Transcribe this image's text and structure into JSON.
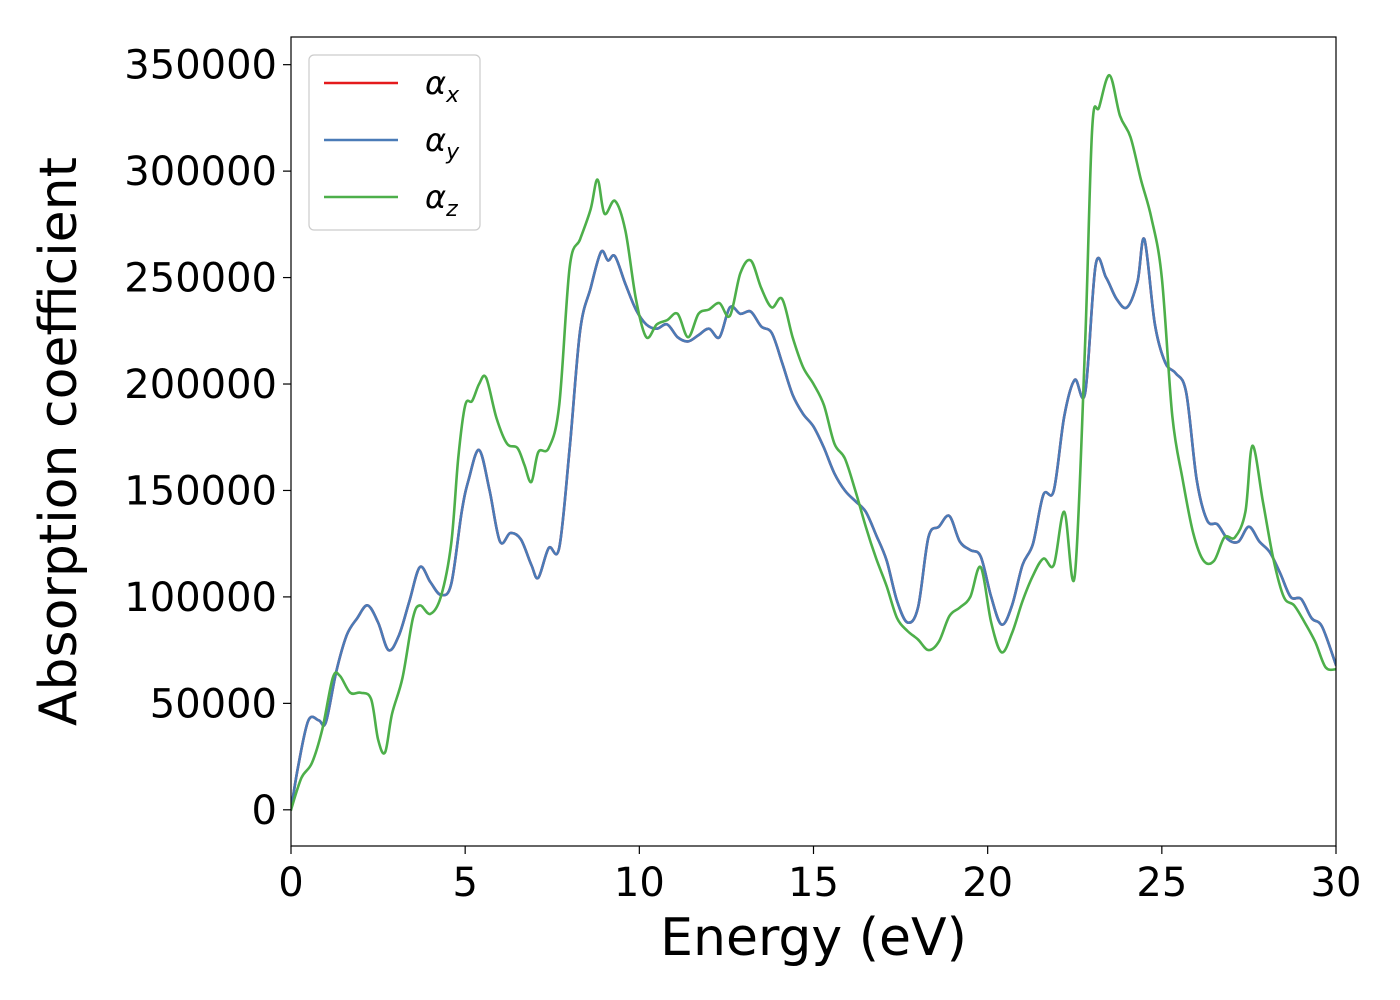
{
  "chart_data": {
    "type": "line",
    "title": "",
    "xlabel": "Energy (eV)",
    "ylabel": "Absorption coefficient",
    "xlim": [
      0,
      30
    ],
    "ylim": [
      -17000,
      363000
    ],
    "xticks": [
      0,
      5,
      10,
      15,
      20,
      25,
      30
    ],
    "xtick_labels": [
      "0",
      "5",
      "10",
      "15",
      "20",
      "25",
      "30"
    ],
    "yticks": [
      0,
      50000,
      100000,
      150000,
      200000,
      250000,
      300000,
      350000
    ],
    "ytick_labels": [
      "0",
      "50000",
      "100000",
      "150000",
      "200000",
      "250000",
      "300000",
      "350000"
    ],
    "grid": false,
    "legend_position": "top-left",
    "series": [
      {
        "name": "αx",
        "name_base": "α",
        "name_sub": "x",
        "color": "#e41a1c",
        "x": [
          0,
          0.2,
          0.5,
          0.8,
          1.0,
          1.3,
          1.6,
          1.9,
          2.2,
          2.5,
          2.8,
          3.1,
          3.4,
          3.7,
          4.0,
          4.3,
          4.6,
          4.9,
          5.1,
          5.4,
          5.7,
          6.0,
          6.3,
          6.6,
          6.9,
          7.1,
          7.4,
          7.7,
          8.0,
          8.3,
          8.6,
          8.9,
          9.1,
          9.3,
          9.6,
          9.9,
          10.2,
          10.5,
          10.8,
          11.1,
          11.4,
          11.7,
          12.0,
          12.3,
          12.6,
          12.9,
          13.2,
          13.5,
          13.8,
          14.1,
          14.4,
          14.7,
          15.0,
          15.3,
          15.6,
          15.9,
          16.2,
          16.5,
          16.8,
          17.1,
          17.4,
          17.7,
          18.0,
          18.3,
          18.6,
          18.9,
          19.2,
          19.5,
          19.8,
          20.1,
          20.4,
          20.7,
          21.0,
          21.3,
          21.6,
          21.9,
          22.2,
          22.5,
          22.8,
          23.1,
          23.4,
          23.7,
          24.0,
          24.3,
          24.5,
          24.8,
          25.1,
          25.4,
          25.7,
          26.0,
          26.3,
          26.6,
          26.9,
          27.2,
          27.5,
          27.8,
          28.1,
          28.4,
          28.7,
          29.0,
          29.3,
          29.6,
          30.0
        ],
        "y": [
          0,
          20000,
          42000,
          42000,
          41000,
          65000,
          82000,
          90000,
          96000,
          88000,
          75000,
          82000,
          98000,
          114000,
          107000,
          101000,
          106000,
          140000,
          155000,
          169000,
          150000,
          126000,
          130000,
          127000,
          115000,
          109000,
          123000,
          123000,
          170000,
          225000,
          245000,
          262000,
          258000,
          260000,
          247000,
          235000,
          228000,
          226000,
          228000,
          222000,
          220000,
          223000,
          226000,
          222000,
          236000,
          233000,
          234000,
          227000,
          224000,
          210000,
          195000,
          186000,
          180000,
          170000,
          158000,
          150000,
          145000,
          140000,
          129000,
          117000,
          98000,
          88000,
          95000,
          128000,
          133000,
          138000,
          126000,
          122000,
          119000,
          100000,
          87000,
          96000,
          115000,
          125000,
          148000,
          150000,
          185000,
          202000,
          196000,
          256000,
          250000,
          240000,
          236000,
          248000,
          268000,
          228000,
          210000,
          205000,
          196000,
          155000,
          136000,
          134000,
          127000,
          126000,
          133000,
          126000,
          121000,
          111000,
          100000,
          99000,
          90000,
          86000,
          68000
        ]
      },
      {
        "name": "αy",
        "name_base": "α",
        "name_sub": "y",
        "color": "#4a7bb7",
        "x": [
          0,
          0.2,
          0.5,
          0.8,
          1.0,
          1.3,
          1.6,
          1.9,
          2.2,
          2.5,
          2.8,
          3.1,
          3.4,
          3.7,
          4.0,
          4.3,
          4.6,
          4.9,
          5.1,
          5.4,
          5.7,
          6.0,
          6.3,
          6.6,
          6.9,
          7.1,
          7.4,
          7.7,
          8.0,
          8.3,
          8.6,
          8.9,
          9.1,
          9.3,
          9.6,
          9.9,
          10.2,
          10.5,
          10.8,
          11.1,
          11.4,
          11.7,
          12.0,
          12.3,
          12.6,
          12.9,
          13.2,
          13.5,
          13.8,
          14.1,
          14.4,
          14.7,
          15.0,
          15.3,
          15.6,
          15.9,
          16.2,
          16.5,
          16.8,
          17.1,
          17.4,
          17.7,
          18.0,
          18.3,
          18.6,
          18.9,
          19.2,
          19.5,
          19.8,
          20.1,
          20.4,
          20.7,
          21.0,
          21.3,
          21.6,
          21.9,
          22.2,
          22.5,
          22.8,
          23.1,
          23.4,
          23.7,
          24.0,
          24.3,
          24.5,
          24.8,
          25.1,
          25.4,
          25.7,
          26.0,
          26.3,
          26.6,
          26.9,
          27.2,
          27.5,
          27.8,
          28.1,
          28.4,
          28.7,
          29.0,
          29.3,
          29.6,
          30.0
        ],
        "y": [
          0,
          20000,
          42000,
          42000,
          41000,
          65000,
          82000,
          90000,
          96000,
          88000,
          75000,
          82000,
          98000,
          114000,
          107000,
          101000,
          106000,
          140000,
          155000,
          169000,
          150000,
          126000,
          130000,
          127000,
          115000,
          109000,
          123000,
          123000,
          170000,
          225000,
          245000,
          262000,
          258000,
          260000,
          247000,
          235000,
          228000,
          226000,
          228000,
          222000,
          220000,
          223000,
          226000,
          222000,
          236000,
          233000,
          234000,
          227000,
          224000,
          210000,
          195000,
          186000,
          180000,
          170000,
          158000,
          150000,
          145000,
          140000,
          129000,
          117000,
          98000,
          88000,
          95000,
          128000,
          133000,
          138000,
          126000,
          122000,
          119000,
          100000,
          87000,
          96000,
          115000,
          125000,
          148000,
          150000,
          185000,
          202000,
          196000,
          256000,
          250000,
          240000,
          236000,
          248000,
          268000,
          228000,
          210000,
          205000,
          196000,
          155000,
          136000,
          134000,
          127000,
          126000,
          133000,
          126000,
          121000,
          111000,
          100000,
          99000,
          90000,
          86000,
          68000
        ]
      },
      {
        "name": "αz",
        "name_base": "α",
        "name_sub": "z",
        "color": "#4daf4a",
        "x": [
          0,
          0.3,
          0.6,
          0.9,
          1.2,
          1.4,
          1.7,
          2.0,
          2.3,
          2.5,
          2.7,
          2.9,
          3.2,
          3.5,
          3.7,
          4.0,
          4.3,
          4.6,
          4.8,
          5.0,
          5.2,
          5.4,
          5.6,
          5.9,
          6.2,
          6.5,
          6.7,
          6.9,
          7.1,
          7.4,
          7.7,
          8.0,
          8.3,
          8.6,
          8.8,
          9.0,
          9.3,
          9.6,
          9.9,
          10.2,
          10.5,
          10.8,
          11.1,
          11.4,
          11.7,
          12.0,
          12.3,
          12.6,
          12.9,
          13.2,
          13.5,
          13.8,
          14.1,
          14.4,
          14.7,
          15.0,
          15.3,
          15.6,
          15.9,
          16.2,
          16.5,
          16.8,
          17.1,
          17.4,
          17.7,
          18.0,
          18.3,
          18.6,
          18.9,
          19.2,
          19.5,
          19.8,
          20.1,
          20.4,
          20.7,
          21.0,
          21.3,
          21.6,
          21.9,
          22.2,
          22.5,
          22.8,
          23.0,
          23.2,
          23.5,
          23.8,
          24.1,
          24.4,
          24.7,
          25.0,
          25.3,
          25.6,
          25.9,
          26.2,
          26.5,
          26.8,
          27.1,
          27.4,
          27.6,
          27.9,
          28.2,
          28.5,
          28.8,
          29.1,
          29.4,
          29.7,
          30.0
        ],
        "y": [
          0,
          15000,
          22000,
          38000,
          62000,
          63000,
          55000,
          55000,
          52000,
          33000,
          27000,
          45000,
          62000,
          90000,
          96000,
          92000,
          100000,
          125000,
          165000,
          190000,
          192000,
          200000,
          203000,
          184000,
          172000,
          170000,
          162000,
          154000,
          168000,
          170000,
          190000,
          255000,
          268000,
          282000,
          296000,
          280000,
          286000,
          272000,
          240000,
          222000,
          228000,
          230000,
          233000,
          222000,
          233000,
          235000,
          238000,
          232000,
          252000,
          258000,
          245000,
          236000,
          240000,
          222000,
          208000,
          200000,
          190000,
          172000,
          165000,
          150000,
          133000,
          118000,
          105000,
          90000,
          84000,
          80000,
          75000,
          79000,
          91000,
          95000,
          100000,
          114000,
          88000,
          74000,
          83000,
          98000,
          110000,
          118000,
          115000,
          140000,
          110000,
          220000,
          320000,
          330000,
          345000,
          326000,
          316000,
          296000,
          278000,
          250000,
          185000,
          155000,
          130000,
          117000,
          117000,
          128000,
          128000,
          140000,
          171000,
          145000,
          118000,
          100000,
          96000,
          88000,
          79000,
          67000,
          66000
        ]
      }
    ]
  }
}
